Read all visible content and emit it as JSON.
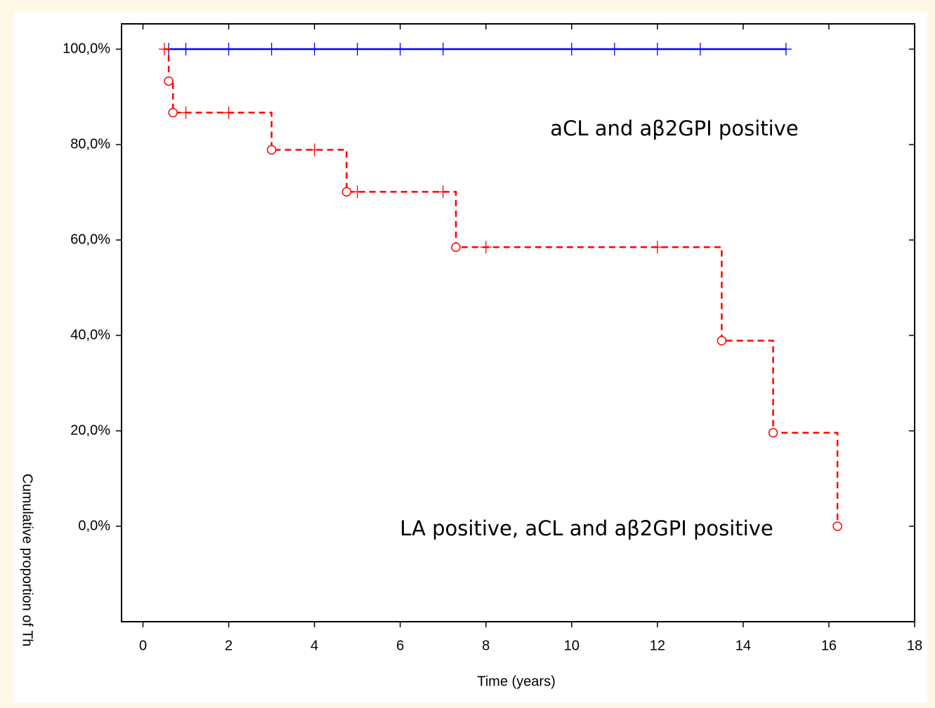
{
  "chart_data": {
    "type": "step",
    "xlabel": "Time (years)",
    "ylabel": "Cumulative proportion of Th",
    "xlim": [
      -0.5,
      18
    ],
    "ylim": [
      -20,
      105.3
    ],
    "xticks": [
      0,
      2,
      4,
      6,
      8,
      10,
      12,
      14,
      16,
      18
    ],
    "yticks": [
      {
        "value": 0,
        "label": "0,0%"
      },
      {
        "value": 20,
        "label": "20,0%"
      },
      {
        "value": 40,
        "label": "40,0%"
      },
      {
        "value": 60,
        "label": "60,0%"
      },
      {
        "value": 80,
        "label": "80,0%"
      },
      {
        "value": 100,
        "label": "100,0%"
      }
    ],
    "annotations": [
      "aCL and aβ2GPI positive",
      "LA positive, aCL and aβ2GPI positive"
    ],
    "series": [
      {
        "name": "aCL and aβ2GPI positive",
        "color": "#0000ff",
        "dash": false,
        "x": [
          0.6,
          1,
          2,
          3,
          4,
          5,
          6,
          7,
          10,
          11,
          12,
          13,
          15
        ],
        "values": [
          100,
          100,
          100,
          100,
          100,
          100,
          100,
          100,
          100,
          100,
          100,
          100,
          100
        ],
        "markers": [
          "cross",
          "cross",
          "cross",
          "cross",
          "cross",
          "cross",
          "cross",
          "cross",
          "cross",
          "cross",
          "cross",
          "cross",
          "cross"
        ]
      },
      {
        "name": "LA positive, aCL and aβ2GPI positive",
        "color": "#ff0000",
        "dash": true,
        "x": [
          0.5,
          0.6,
          0.7,
          1,
          2,
          3,
          4,
          4.75,
          5,
          7,
          7.3,
          8,
          12,
          13.5,
          14.7,
          16.2
        ],
        "values": [
          100,
          93.3,
          86.7,
          86.7,
          86.7,
          78.9,
          78.9,
          70.1,
          70.1,
          70.1,
          58.5,
          58.5,
          58.5,
          38.9,
          19.6,
          0
        ],
        "markers": [
          "cross",
          "circle",
          "circle",
          "cross",
          "cross",
          "circle",
          "cross",
          "circle",
          "cross",
          "cross",
          "circle",
          "cross",
          "cross",
          "circle",
          "circle",
          "circle"
        ]
      }
    ]
  }
}
